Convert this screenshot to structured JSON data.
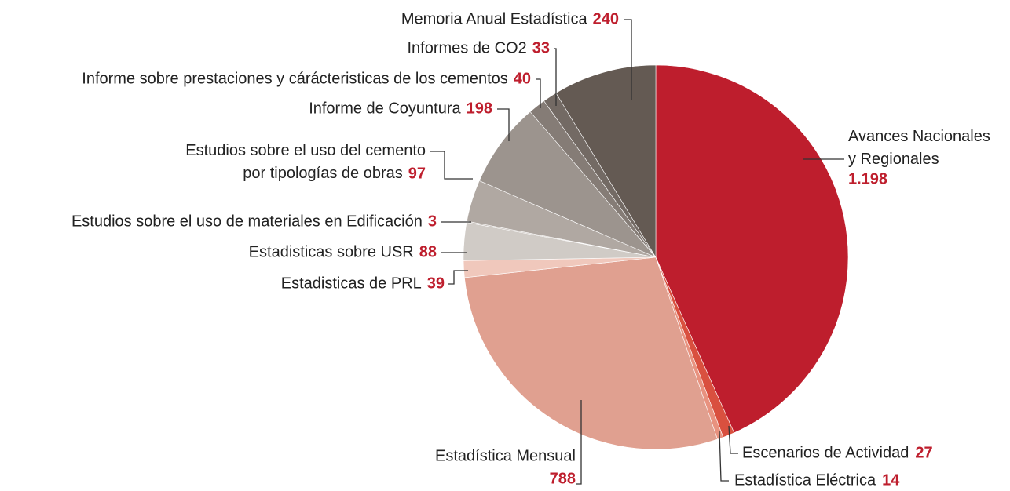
{
  "chart_data": {
    "type": "pie",
    "categories": [
      "Avances Nacionales\ny Regionales",
      "Escenarios de Actividad",
      "Estadística Eléctrica",
      "Estadística Mensual",
      "Estadisticas de PRL",
      "Estadisticas sobre USR",
      "Estudios sobre el uso de materiales en Edificación",
      "Estudios sobre el uso del cemento\npor tipologías de obras",
      "Informe de Coyuntura",
      "Informe sobre prestaciones y cárácteristicas de los cementos",
      "Informes de CO2",
      "Memoria Anual Estadística"
    ],
    "values": [
      1198,
      27,
      14,
      788,
      39,
      88,
      3,
      97,
      198,
      40,
      33,
      240
    ],
    "value_labels": [
      "1.198",
      "27",
      "14",
      "788",
      "39",
      "88",
      "3",
      "97",
      "198",
      "40",
      "33",
      "240"
    ],
    "colors": [
      "#be1e2d",
      "#d9503f",
      "#e8927f",
      "#e0a090",
      "#f0c8bc",
      "#d0cbc6",
      "#c0b8b2",
      "#b0a8a2",
      "#9c948e",
      "#857c76",
      "#736a64",
      "#645a53"
    ]
  }
}
